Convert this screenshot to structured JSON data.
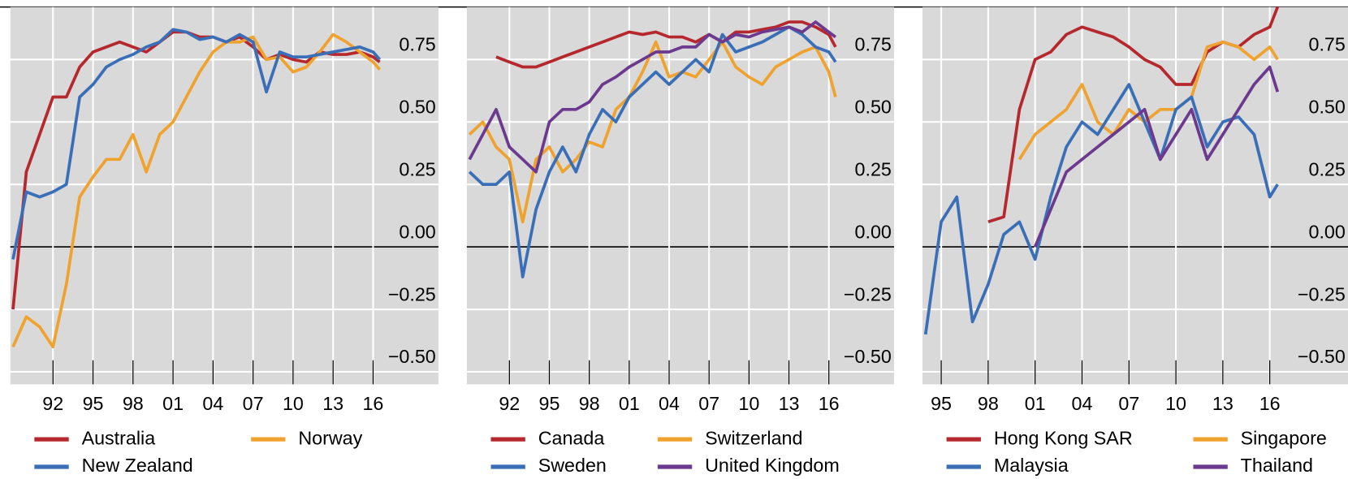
{
  "chart_data": [
    {
      "type": "line",
      "x": [
        1989,
        1990,
        1991,
        1992,
        1993,
        1994,
        1995,
        1996,
        1997,
        1998,
        1999,
        2000,
        2001,
        2002,
        2003,
        2004,
        2005,
        2006,
        2007,
        2008,
        2009,
        2010,
        2011,
        2012,
        2013,
        2014,
        2015,
        2016,
        2016.5
      ],
      "series": [
        {
          "name": "Australia",
          "color": "#b5282e",
          "values": [
            -0.25,
            0.3,
            0.45,
            0.6,
            0.6,
            0.72,
            0.78,
            0.8,
            0.82,
            0.8,
            0.78,
            0.82,
            0.86,
            0.86,
            0.84,
            0.84,
            0.82,
            0.84,
            0.8,
            0.75,
            0.77,
            0.75,
            0.74,
            0.78,
            0.77,
            0.77,
            0.78,
            0.76,
            0.74
          ]
        },
        {
          "name": "Norway",
          "color": "#f0a22e",
          "values": [
            -0.4,
            -0.28,
            -0.32,
            -0.4,
            -0.15,
            0.2,
            0.28,
            0.35,
            0.35,
            0.45,
            0.3,
            0.45,
            0.5,
            0.6,
            0.7,
            0.78,
            0.82,
            0.82,
            0.84,
            0.75,
            0.76,
            0.7,
            0.72,
            0.78,
            0.85,
            0.82,
            0.78,
            0.74,
            0.71
          ]
        },
        {
          "name": "New Zealand",
          "color": "#3a6fb8",
          "values": [
            -0.05,
            0.22,
            0.2,
            0.22,
            0.25,
            0.6,
            0.65,
            0.72,
            0.75,
            0.77,
            0.8,
            0.82,
            0.87,
            0.86,
            0.83,
            0.84,
            0.82,
            0.85,
            0.82,
            0.62,
            0.78,
            0.76,
            0.76,
            0.77,
            0.78,
            0.79,
            0.8,
            0.78,
            0.75
          ]
        }
      ],
      "xlim": [
        1988.8,
        2020.9
      ],
      "xticks": [
        {
          "value": 1992,
          "label": "92"
        },
        {
          "value": 1995,
          "label": "95"
        },
        {
          "value": 1998,
          "label": "98"
        },
        {
          "value": 2001,
          "label": "01"
        },
        {
          "value": 2004,
          "label": "04"
        },
        {
          "value": 2007,
          "label": "07"
        },
        {
          "value": 2010,
          "label": "10"
        },
        {
          "value": 2013,
          "label": "13"
        },
        {
          "value": 2016,
          "label": "16"
        }
      ],
      "ylim": [
        -0.55,
        0.96
      ],
      "yticks": [
        {
          "value": -0.5,
          "label": "−0.50"
        },
        {
          "value": -0.25,
          "label": "−0.25"
        },
        {
          "value": 0,
          "label": "0.00"
        },
        0.25,
        {
          "value": 0.5,
          "label": "0.50"
        },
        0.75
      ],
      "grid": true
    },
    {
      "type": "line",
      "x": [
        1989,
        1990,
        1991,
        1992,
        1993,
        1994,
        1995,
        1996,
        1997,
        1998,
        1999,
        2000,
        2001,
        2002,
        2003,
        2004,
        2005,
        2006,
        2007,
        2008,
        2009,
        2010,
        2011,
        2012,
        2013,
        2014,
        2015,
        2016,
        2016.5
      ],
      "series": [
        {
          "name": "Canada",
          "color": "#b5282e",
          "values": [
            null,
            null,
            0.76,
            0.74,
            0.72,
            0.72,
            0.74,
            0.76,
            0.78,
            0.8,
            0.82,
            0.84,
            0.86,
            0.85,
            0.86,
            0.84,
            0.84,
            0.82,
            0.85,
            0.82,
            0.86,
            0.86,
            0.87,
            0.88,
            0.9,
            0.9,
            0.88,
            0.85,
            0.8
          ]
        },
        {
          "name": "Switzerland",
          "color": "#f0a22e",
          "values": [
            0.45,
            0.5,
            0.4,
            0.35,
            0.1,
            0.35,
            0.4,
            0.3,
            0.35,
            0.42,
            0.4,
            0.55,
            0.6,
            0.7,
            0.82,
            0.68,
            0.7,
            0.68,
            0.75,
            0.82,
            0.72,
            0.68,
            0.65,
            0.72,
            0.75,
            0.78,
            0.8,
            0.7,
            0.6
          ]
        },
        {
          "name": "Sweden",
          "color": "#3a6fb8",
          "values": [
            0.3,
            0.25,
            0.25,
            0.3,
            -0.12,
            0.15,
            0.3,
            0.4,
            0.3,
            0.45,
            0.55,
            0.5,
            0.6,
            0.65,
            0.7,
            0.65,
            0.7,
            0.75,
            0.7,
            0.85,
            0.78,
            0.8,
            0.82,
            0.85,
            0.88,
            0.85,
            0.8,
            0.78,
            0.74
          ]
        },
        {
          "name": "United Kingdom",
          "color": "#6b3a8e",
          "values": [
            0.35,
            0.45,
            0.55,
            0.4,
            0.35,
            0.3,
            0.5,
            0.55,
            0.55,
            0.58,
            0.65,
            0.68,
            0.72,
            0.75,
            0.78,
            0.78,
            0.8,
            0.8,
            0.85,
            0.82,
            0.85,
            0.84,
            0.86,
            0.87,
            0.88,
            0.86,
            0.9,
            0.86,
            0.84
          ]
        }
      ],
      "xlim": [
        1988.8,
        2020.9
      ],
      "xticks": [
        {
          "value": 1992,
          "label": "92"
        },
        {
          "value": 1995,
          "label": "95"
        },
        {
          "value": 1998,
          "label": "98"
        },
        {
          "value": 2001,
          "label": "01"
        },
        {
          "value": 2004,
          "label": "04"
        },
        {
          "value": 2007,
          "label": "07"
        },
        {
          "value": 2010,
          "label": "10"
        },
        {
          "value": 2013,
          "label": "13"
        },
        {
          "value": 2016,
          "label": "16"
        }
      ],
      "ylim": [
        -0.55,
        0.96
      ],
      "yticks": [
        {
          "value": -0.5,
          "label": "−0.50"
        },
        {
          "value": -0.25,
          "label": "−0.25"
        },
        {
          "value": 0,
          "label": "0.00"
        },
        0.25,
        {
          "value": 0.5,
          "label": "0.50"
        },
        0.75
      ],
      "grid": true
    },
    {
      "type": "line",
      "x": [
        1994,
        1995,
        1996,
        1997,
        1998,
        1999,
        2000,
        2001,
        2002,
        2003,
        2004,
        2005,
        2006,
        2007,
        2008,
        2009,
        2010,
        2011,
        2012,
        2013,
        2014,
        2015,
        2016,
        2016.5
      ],
      "series": [
        {
          "name": "Hong Kong SAR",
          "color": "#b5282e",
          "values": [
            null,
            null,
            null,
            null,
            0.1,
            0.12,
            0.55,
            0.75,
            0.78,
            0.85,
            0.88,
            0.86,
            0.84,
            0.8,
            0.75,
            0.72,
            0.65,
            0.65,
            0.78,
            0.82,
            0.8,
            0.85,
            0.88,
            0.96
          ]
        },
        {
          "name": "Singapore",
          "color": "#f0a22e",
          "values": [
            null,
            null,
            null,
            null,
            null,
            null,
            0.35,
            0.45,
            0.5,
            0.55,
            0.65,
            0.5,
            0.45,
            0.55,
            0.5,
            0.55,
            0.55,
            0.6,
            0.8,
            0.82,
            0.8,
            0.75,
            0.8,
            0.75
          ]
        },
        {
          "name": "Malaysia",
          "color": "#3a6fb8",
          "values": [
            -0.35,
            0.1,
            0.2,
            -0.3,
            -0.15,
            0.05,
            0.1,
            -0.05,
            0.2,
            0.4,
            0.5,
            0.45,
            0.55,
            0.65,
            0.5,
            0.35,
            0.55,
            0.6,
            0.4,
            0.5,
            0.52,
            0.45,
            0.2,
            0.25
          ]
        },
        {
          "name": "Thailand",
          "color": "#6b3a8e",
          "values": [
            null,
            null,
            null,
            null,
            null,
            null,
            null,
            0.0,
            0.15,
            0.3,
            0.35,
            0.4,
            0.45,
            0.5,
            0.55,
            0.35,
            0.45,
            0.55,
            0.35,
            0.45,
            0.55,
            0.65,
            0.72,
            0.62
          ]
        }
      ],
      "xlim": [
        1993.8,
        2021
      ],
      "xticks": [
        {
          "value": 1995,
          "label": "95"
        },
        {
          "value": 1998,
          "label": "98"
        },
        {
          "value": 2001,
          "label": "01"
        },
        {
          "value": 2004,
          "label": "04"
        },
        {
          "value": 2007,
          "label": "07"
        },
        {
          "value": 2010,
          "label": "10"
        },
        {
          "value": 2013,
          "label": "13"
        },
        {
          "value": 2016,
          "label": "16"
        }
      ],
      "ylim": [
        -0.55,
        0.96
      ],
      "yticks": [
        {
          "value": -0.5,
          "label": "−0.50"
        },
        {
          "value": -0.25,
          "label": "−0.25"
        },
        {
          "value": 0,
          "label": "0.00"
        },
        0.25,
        {
          "value": 0.5,
          "label": "0.50"
        },
        0.75
      ],
      "grid": true
    }
  ]
}
